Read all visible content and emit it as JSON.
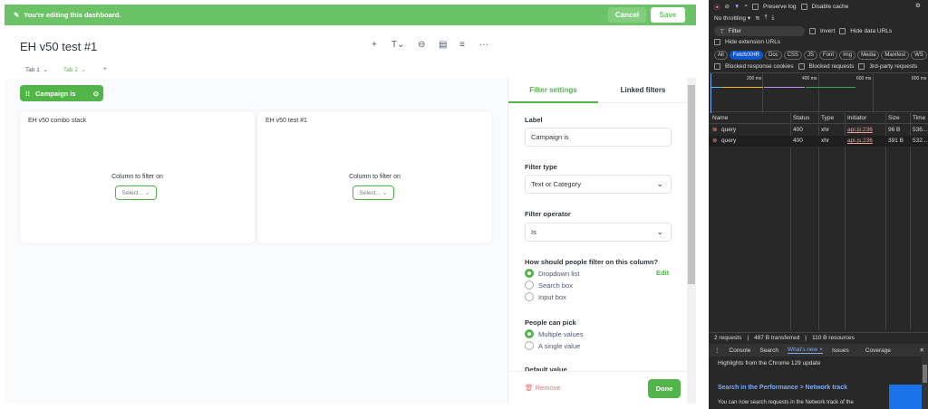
{
  "banner": {
    "text": "You're editing this dashboard.",
    "cancel": "Cancel",
    "save": "Save"
  },
  "dashboard": {
    "title": "EH v50 test #1",
    "tabs": [
      "Tab 1",
      "Tab 2"
    ],
    "add_tab": "+",
    "filter_chip": "Campaign is",
    "cards": [
      {
        "title": "EH v50 combo stack",
        "column_label": "Column to filter on",
        "select": "Select..."
      },
      {
        "title": "EH v50 test #1",
        "column_label": "Column to filter on",
        "select": "Select..."
      }
    ]
  },
  "sidebar": {
    "tabs": [
      "Filter settings",
      "Linked filters"
    ],
    "label_title": "Label",
    "label_value": "Campaign is",
    "type_title": "Filter type",
    "type_value": "Text or Category",
    "op_title": "Filter operator",
    "op_value": "Is",
    "how_title": "How should people filter on this column?",
    "how_options": [
      "Dropdown list",
      "Search box",
      "Input box"
    ],
    "how_selected": 0,
    "edit": "Edit",
    "pick_title": "People can pick",
    "pick_options": [
      "Multiple values",
      "A single value"
    ],
    "pick_selected": 0,
    "default_title": "Default value",
    "remove": "Remove",
    "done": "Done"
  },
  "devtools": {
    "preserve_log": "Preserve log",
    "disable_cache": "Disable cache",
    "throttling": "No throttling",
    "filter_placeholder": "Filter",
    "invert": "Invert",
    "hide_data_urls": "Hide data URLs",
    "hide_ext": "Hide extension URLs",
    "types": [
      "All",
      "Fetch/XHR",
      "Doc",
      "CSS",
      "JS",
      "Font",
      "Img",
      "Media",
      "Manifest",
      "WS",
      "Wasm"
    ],
    "active_type": "Fetch/XHR",
    "blocked_cookies": "Blocked response cookies",
    "blocked_requests": "Blocked requests",
    "third_party": "3rd-party requests",
    "timeline": [
      "200 ms",
      "400 ms",
      "600 ms",
      "800 ms"
    ],
    "columns": [
      "Name",
      "Status",
      "Type",
      "Initiator",
      "Size",
      "Time"
    ],
    "rows": [
      [
        "query",
        "400",
        "xhr",
        "api.js:236",
        "96 B",
        "536..."
      ],
      [
        "query",
        "400",
        "xhr",
        "api.js:236",
        "391 B",
        "532..."
      ]
    ],
    "summary": [
      "2 requests",
      "487 B transferred",
      "110 B resources"
    ],
    "drawer_tabs": [
      "Console",
      "Search",
      "What's new",
      "Issues",
      "Coverage"
    ],
    "highlights": "Highlights from the Chrome 129 update",
    "news_title": "Search in the Performance > Network track",
    "news_text": "You can now search requests in the Network track of the"
  },
  "colors": {
    "brand": "#52b54a",
    "banner": "#6cc266",
    "remove": "#ed6e6e",
    "link": "#509ee3"
  }
}
